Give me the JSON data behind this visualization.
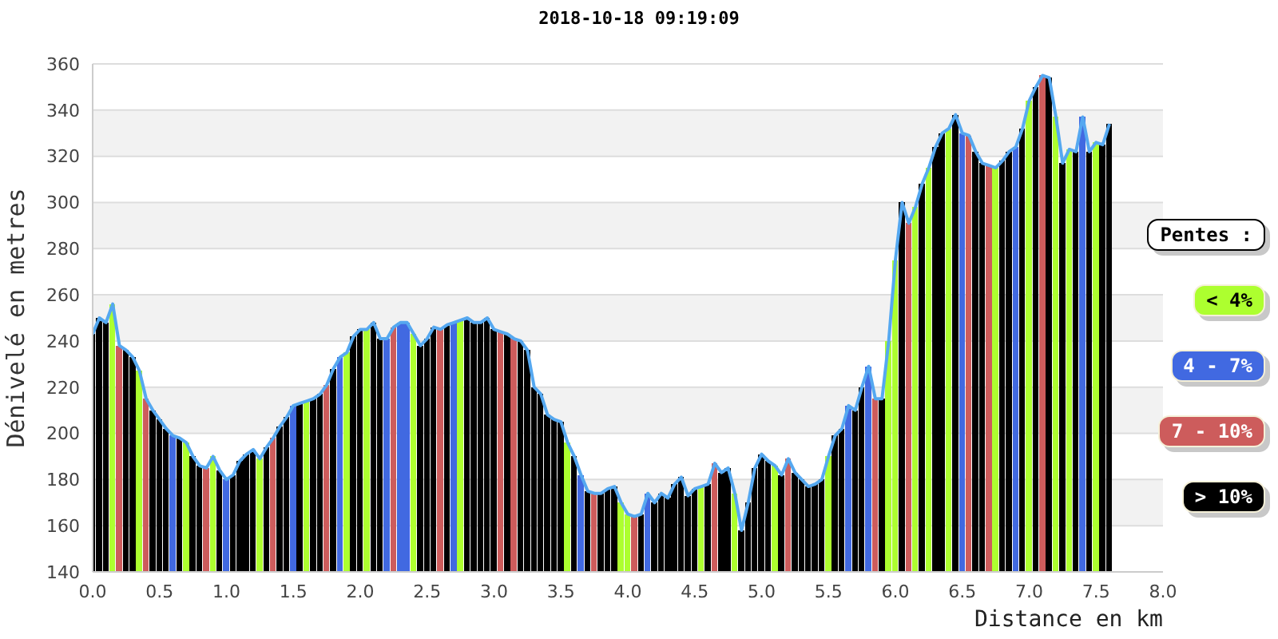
{
  "chart_data": {
    "type": "bar",
    "title": "2018-10-18 09:19:09",
    "xlabel": "Distance en km",
    "ylabel": "Dénivelé en metres",
    "legend_title": "Pentes :",
    "xlim": [
      0,
      8
    ],
    "xticks": [
      {
        "value": 0,
        "label": "0.0"
      },
      0.5,
      {
        "value": 1,
        "label": "1.0"
      },
      1.5,
      {
        "value": 2,
        "label": "2.0"
      },
      2.5,
      {
        "value": 3,
        "label": "3.0"
      },
      3.5,
      {
        "value": 4,
        "label": "4.0"
      },
      4.5,
      {
        "value": 5,
        "label": "5.0"
      },
      5.5,
      {
        "value": 6,
        "label": "6.0"
      },
      6.5,
      {
        "value": 7,
        "label": "7.0"
      },
      7.5,
      {
        "value": 8,
        "label": "8.0"
      }
    ],
    "ylim": [
      140,
      360
    ],
    "yticks": [
      140,
      160,
      180,
      200,
      220,
      240,
      260,
      280,
      300,
      320,
      340,
      360
    ],
    "grid": "y",
    "legend": "right",
    "series": [
      {
        "name": "< 4%",
        "color": "#adff2f",
        "x": [
          0.15,
          0.35,
          0.7,
          0.9,
          1.25,
          1.6,
          1.9,
          2.05,
          2.4,
          2.75,
          3.55,
          3.95,
          4,
          4.55,
          4.8,
          5.1,
          5.5,
          5.95,
          6,
          6.15,
          6.25,
          6.4,
          6.75,
          7,
          7.2,
          7.3,
          7.5
        ],
        "values": [
          256,
          227,
          196,
          190,
          189,
          214,
          235,
          245,
          243,
          249,
          196,
          170,
          165,
          177,
          174,
          186,
          190,
          240,
          275,
          298,
          315,
          332,
          315,
          344,
          337,
          323,
          326
        ]
      },
      {
        "name": "4 - 7%",
        "color": "#4169e1",
        "x": [
          0.6,
          1,
          1.5,
          1.85,
          2.2,
          2.3,
          2.35,
          2.7,
          3.65,
          4.15,
          5.65,
          5.8,
          6.5,
          6.9,
          7.4
        ],
        "values": [
          199,
          180,
          212,
          233,
          241,
          248,
          248,
          248,
          182,
          174,
          212,
          229,
          330,
          324,
          337
        ]
      },
      {
        "name": "7 - 10%",
        "color": "#cd5c5c",
        "x": [
          0.2,
          0.4,
          0.85,
          1.35,
          1.75,
          2.25,
          2.6,
          3.05,
          3.15,
          3.75,
          4.05,
          4.65,
          5.2,
          5.85,
          6.1,
          6.55,
          6.7,
          7.1
        ],
        "values": [
          238,
          215,
          185,
          198,
          221,
          246,
          245,
          244,
          241,
          174,
          164,
          187,
          189,
          215,
          291,
          329,
          316,
          355
        ]
      },
      {
        "name": "> 10%",
        "color": "#000000",
        "x": [
          0,
          0.05,
          0.1,
          0.25,
          0.3,
          0.45,
          0.5,
          0.55,
          0.65,
          0.75,
          0.8,
          0.95,
          1.05,
          1.1,
          1.15,
          1.2,
          1.3,
          1.4,
          1.45,
          1.55,
          1.65,
          1.7,
          1.8,
          1.95,
          2,
          2.1,
          2.15,
          2.45,
          2.5,
          2.55,
          2.65,
          2.8,
          2.85,
          2.9,
          2.95,
          3,
          3.1,
          3.2,
          3.25,
          3.3,
          3.35,
          3.4,
          3.45,
          3.5,
          3.6,
          3.7,
          3.8,
          3.85,
          3.9,
          4.1,
          4.2,
          4.25,
          4.3,
          4.35,
          4.4,
          4.45,
          4.5,
          4.6,
          4.7,
          4.75,
          4.85,
          4.9,
          4.95,
          5,
          5.05,
          5.15,
          5.25,
          5.3,
          5.35,
          5.4,
          5.45,
          5.55,
          5.6,
          5.7,
          5.75,
          5.9,
          6.05,
          6.2,
          6.3,
          6.35,
          6.45,
          6.6,
          6.65,
          6.8,
          6.85,
          6.95,
          7.05,
          7.15,
          7.25,
          7.35,
          7.45,
          7.55,
          7.6
        ],
        "values": [
          243,
          250,
          248,
          236,
          233,
          210,
          206,
          202,
          198,
          190,
          186,
          184,
          182,
          188,
          191,
          193,
          194,
          203,
          207,
          213,
          215,
          217,
          228,
          242,
          245,
          248,
          241,
          238,
          241,
          246,
          247,
          250,
          248,
          248,
          250,
          245,
          243,
          240,
          236,
          220,
          217,
          208,
          206,
          205,
          190,
          175,
          174,
          176,
          177,
          165,
          170,
          174,
          172,
          178,
          181,
          173,
          176,
          178,
          183,
          185,
          158,
          170,
          185,
          191,
          188,
          182,
          183,
          180,
          177,
          178,
          180,
          199,
          202,
          210,
          220,
          215,
          300,
          308,
          324,
          330,
          338,
          322,
          317,
          318,
          322,
          332,
          350,
          354,
          317,
          322,
          322,
          325,
          334
        ]
      },
      {
        "type": "line",
        "color": "#55a8f0",
        "x": [
          0,
          0.05,
          0.1,
          0.15,
          0.2,
          0.25,
          0.3,
          0.35,
          0.4,
          0.45,
          0.5,
          0.55,
          0.6,
          0.65,
          0.7,
          0.75,
          0.8,
          0.85,
          0.9,
          0.95,
          1,
          1.05,
          1.1,
          1.15,
          1.2,
          1.25,
          1.3,
          1.35,
          1.4,
          1.45,
          1.5,
          1.55,
          1.6,
          1.65,
          1.7,
          1.75,
          1.8,
          1.85,
          1.9,
          1.95,
          2,
          2.05,
          2.1,
          2.15,
          2.2,
          2.25,
          2.3,
          2.35,
          2.4,
          2.45,
          2.5,
          2.55,
          2.6,
          2.65,
          2.7,
          2.75,
          2.8,
          2.85,
          2.9,
          2.95,
          3,
          3.05,
          3.1,
          3.15,
          3.2,
          3.25,
          3.3,
          3.35,
          3.4,
          3.45,
          3.5,
          3.55,
          3.6,
          3.65,
          3.7,
          3.75,
          3.8,
          3.85,
          3.9,
          3.95,
          4,
          4.05,
          4.1,
          4.15,
          4.2,
          4.25,
          4.3,
          4.35,
          4.4,
          4.45,
          4.5,
          4.55,
          4.6,
          4.65,
          4.7,
          4.75,
          4.8,
          4.85,
          4.9,
          4.95,
          5,
          5.05,
          5.1,
          5.15,
          5.2,
          5.25,
          5.3,
          5.35,
          5.4,
          5.45,
          5.5,
          5.55,
          5.6,
          5.65,
          5.7,
          5.75,
          5.8,
          5.85,
          5.9,
          5.95,
          6,
          6.05,
          6.1,
          6.15,
          6.2,
          6.25,
          6.3,
          6.35,
          6.4,
          6.45,
          6.5,
          6.55,
          6.6,
          6.65,
          6.7,
          6.75,
          6.8,
          6.85,
          6.9,
          6.95,
          7,
          7.05,
          7.1,
          7.15,
          7.2,
          7.25,
          7.3,
          7.35,
          7.4,
          7.45,
          7.5,
          7.55,
          7.6
        ],
        "values": [
          243,
          250,
          248,
          256,
          238,
          236,
          233,
          227,
          215,
          210,
          206,
          202,
          199,
          198,
          196,
          190,
          186,
          185,
          190,
          184,
          180,
          182,
          188,
          191,
          193,
          189,
          194,
          198,
          203,
          207,
          212,
          213,
          214,
          215,
          217,
          221,
          228,
          233,
          235,
          242,
          245,
          245,
          248,
          241,
          241,
          246,
          248,
          248,
          243,
          238,
          241,
          246,
          245,
          247,
          248,
          249,
          250,
          248,
          248,
          250,
          245,
          244,
          243,
          241,
          240,
          236,
          220,
          217,
          208,
          206,
          205,
          196,
          190,
          182,
          175,
          174,
          174,
          176,
          177,
          170,
          165,
          164,
          165,
          174,
          170,
          174,
          172,
          178,
          181,
          173,
          176,
          177,
          178,
          187,
          183,
          185,
          174,
          158,
          170,
          185,
          191,
          188,
          186,
          182,
          189,
          183,
          180,
          177,
          178,
          180,
          190,
          199,
          202,
          212,
          210,
          220,
          229,
          215,
          215,
          240,
          275,
          300,
          291,
          298,
          308,
          315,
          324,
          330,
          332,
          338,
          330,
          329,
          322,
          317,
          316,
          315,
          318,
          322,
          324,
          332,
          344,
          350,
          355,
          354,
          337,
          317,
          323,
          322,
          337,
          322,
          326,
          325,
          334
        ]
      }
    ]
  }
}
